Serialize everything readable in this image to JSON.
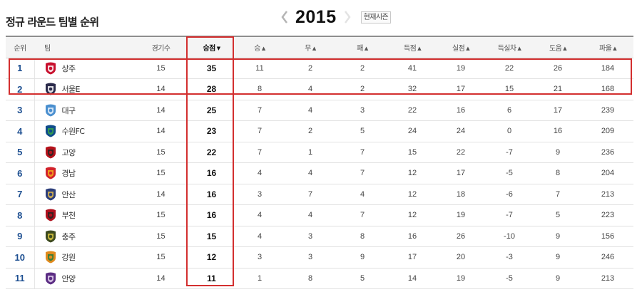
{
  "page": {
    "title": "정규 라운드 팀별 순위"
  },
  "year_nav": {
    "year": "2015",
    "current_season_label": "현재시즌",
    "prev_icon": "chevron-left-icon",
    "next_icon": "chevron-right-icon"
  },
  "table": {
    "columns": [
      {
        "key": "rank",
        "label": "순위"
      },
      {
        "key": "team",
        "label": "팀"
      },
      {
        "key": "games",
        "label": "경기수"
      },
      {
        "key": "points",
        "label": "승점",
        "sort_icon": "▼"
      },
      {
        "key": "wins",
        "label": "승",
        "sort_icon": "▲"
      },
      {
        "key": "draws",
        "label": "무",
        "sort_icon": "▲"
      },
      {
        "key": "losses",
        "label": "패",
        "sort_icon": "▲"
      },
      {
        "key": "goals_for",
        "label": "득점",
        "sort_icon": "▲"
      },
      {
        "key": "goals_against",
        "label": "실점",
        "sort_icon": "▲"
      },
      {
        "key": "goal_diff",
        "label": "득실차",
        "sort_icon": "▲"
      },
      {
        "key": "assists",
        "label": "도움",
        "sort_icon": "▲"
      },
      {
        "key": "fouls",
        "label": "파울",
        "sort_icon": "▲"
      }
    ],
    "rows": [
      {
        "rank": "1",
        "team": "상주",
        "games": "15",
        "points": "35",
        "wins": "11",
        "draws": "2",
        "losses": "2",
        "goals_for": "41",
        "goals_against": "19",
        "goal_diff": "22",
        "assists": "26",
        "fouls": "184",
        "emblem_color": "#c8102e",
        "emblem_accent": "#ffffff"
      },
      {
        "rank": "2",
        "team": "서울E",
        "games": "14",
        "points": "28",
        "wins": "8",
        "draws": "4",
        "losses": "2",
        "goals_for": "32",
        "goals_against": "17",
        "goal_diff": "15",
        "assists": "21",
        "fouls": "168",
        "emblem_color": "#2b2b4b",
        "emblem_accent": "#ffffff"
      },
      {
        "rank": "3",
        "team": "대구",
        "games": "14",
        "points": "25",
        "wins": "7",
        "draws": "4",
        "losses": "3",
        "goals_for": "22",
        "goals_against": "16",
        "goal_diff": "6",
        "assists": "17",
        "fouls": "239",
        "emblem_color": "#4a8fcf",
        "emblem_accent": "#e8f1fa"
      },
      {
        "rank": "4",
        "team": "수원FC",
        "games": "14",
        "points": "23",
        "wins": "7",
        "draws": "2",
        "losses": "5",
        "goals_for": "24",
        "goals_against": "24",
        "goal_diff": "0",
        "assists": "16",
        "fouls": "209",
        "emblem_color": "#0f4c8a",
        "emblem_accent": "#3aa845"
      },
      {
        "rank": "5",
        "team": "고양",
        "games": "15",
        "points": "22",
        "wins": "7",
        "draws": "1",
        "losses": "7",
        "goals_for": "15",
        "goals_against": "22",
        "goal_diff": "-7",
        "assists": "9",
        "fouls": "236",
        "emblem_color": "#b5121b",
        "emblem_accent": "#222222"
      },
      {
        "rank": "6",
        "team": "경남",
        "games": "15",
        "points": "16",
        "wins": "4",
        "draws": "4",
        "losses": "7",
        "goals_for": "12",
        "goals_against": "17",
        "goal_diff": "-5",
        "assists": "8",
        "fouls": "204",
        "emblem_color": "#d2232a",
        "emblem_accent": "#f5b21b"
      },
      {
        "rank": "7",
        "team": "안산",
        "games": "14",
        "points": "16",
        "wins": "3",
        "draws": "7",
        "losses": "4",
        "goals_for": "12",
        "goals_against": "18",
        "goal_diff": "-6",
        "assists": "7",
        "fouls": "213",
        "emblem_color": "#2c3e7a",
        "emblem_accent": "#e0b84b"
      },
      {
        "rank": "8",
        "team": "부천",
        "games": "15",
        "points": "16",
        "wins": "4",
        "draws": "4",
        "losses": "7",
        "goals_for": "12",
        "goals_against": "19",
        "goal_diff": "-7",
        "assists": "5",
        "fouls": "223",
        "emblem_color": "#b0101d",
        "emblem_accent": "#222222"
      },
      {
        "rank": "9",
        "team": "충주",
        "games": "15",
        "points": "15",
        "wins": "4",
        "draws": "3",
        "losses": "8",
        "goals_for": "16",
        "goals_against": "26",
        "goal_diff": "-10",
        "assists": "9",
        "fouls": "156",
        "emblem_color": "#3d4a1f",
        "emblem_accent": "#d9c640"
      },
      {
        "rank": "10",
        "team": "강원",
        "games": "15",
        "points": "12",
        "wins": "3",
        "draws": "3",
        "losses": "9",
        "goals_for": "17",
        "goals_against": "20",
        "goal_diff": "-3",
        "assists": "9",
        "fouls": "246",
        "emblem_color": "#e08a1e",
        "emblem_accent": "#1f7a3d"
      },
      {
        "rank": "11",
        "team": "안양",
        "games": "14",
        "points": "11",
        "wins": "1",
        "draws": "8",
        "losses": "5",
        "goals_for": "14",
        "goals_against": "19",
        "goal_diff": "-5",
        "assists": "9",
        "fouls": "213",
        "emblem_color": "#5b2c83",
        "emblem_accent": "#e4d3f0"
      }
    ]
  },
  "highlight_color": "#d32f2f"
}
